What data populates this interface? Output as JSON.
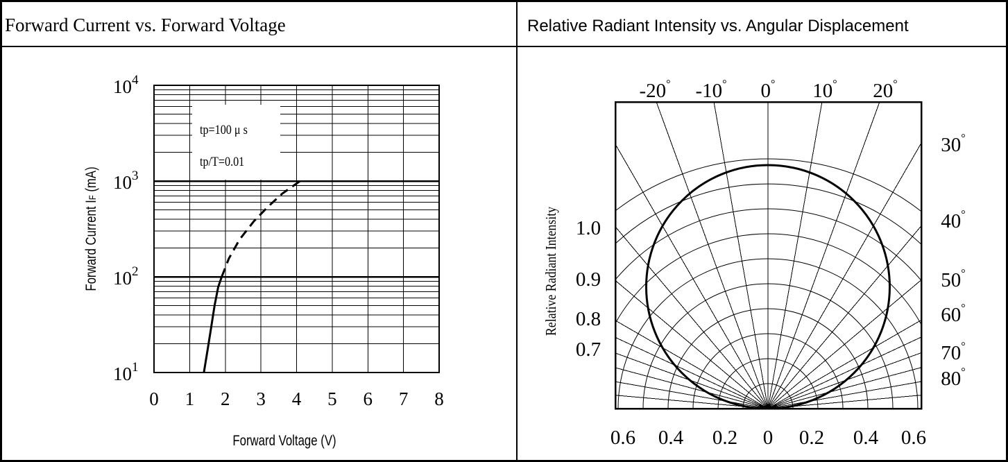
{
  "panels": {
    "left_title": "Forward Current vs. Forward Voltage",
    "right_title": "Relative Radiant Intensity vs. Angular Displacement"
  },
  "chart_data": [
    {
      "type": "line",
      "title": "Forward Current vs. Forward Voltage",
      "xlabel": "Forward Voltage (V)",
      "ylabel_main": "Forward Current I",
      "ylabel_sub": "F",
      "ylabel_unit": " (mA)",
      "xlim": [
        0,
        8
      ],
      "ylim": [
        10,
        10000
      ],
      "yscale": "log",
      "grid": true,
      "x_ticks": [
        "0",
        "1",
        "2",
        "3",
        "4",
        "5",
        "6",
        "7",
        "8"
      ],
      "y_ticks": [
        {
          "base": "10",
          "exp": "1"
        },
        {
          "base": "10",
          "exp": "2"
        },
        {
          "base": "10",
          "exp": "3"
        },
        {
          "base": "10",
          "exp": "4"
        }
      ],
      "annotations": [
        "tp=100 μ s",
        "tp/T=0.01"
      ],
      "series": [
        {
          "style": "solid",
          "x": [
            1.4,
            1.5,
            1.6,
            1.7,
            1.8,
            1.9
          ],
          "y": [
            10,
            17,
            29,
            50,
            78,
            100
          ]
        },
        {
          "style": "dashed",
          "x": [
            1.9,
            2.1,
            2.4,
            2.8,
            3.2,
            3.6,
            4.1
          ],
          "y": [
            100,
            155,
            245,
            380,
            540,
            740,
            1000
          ]
        }
      ]
    },
    {
      "type": "polar",
      "title": "Relative Radiant Intensity vs. Angular Displacement",
      "ylabel": "Relative Radiant Intensity",
      "top_angle_labels": [
        "-20",
        "-10",
        "0",
        "10",
        "20"
      ],
      "right_angle_labels": [
        "30",
        "40",
        "50",
        "60",
        "70",
        "80"
      ],
      "degree_symbol": "°",
      "left_scale_labels": [
        "1.0",
        "0.9",
        "0.8",
        "0.7"
      ],
      "bottom_scale_labels": [
        "0.6",
        "0.4",
        "0.2",
        "0",
        "0.2",
        "0.4",
        "0.6"
      ],
      "ring_radii": [
        0.1,
        0.2,
        0.3,
        0.4,
        0.5,
        0.6,
        0.7,
        0.8,
        0.9,
        1.0
      ],
      "radial_angles_deg": [
        -85,
        -80,
        -75,
        -70,
        -65,
        -60,
        -50,
        -40,
        -30,
        -20,
        -10,
        0,
        10,
        20,
        30,
        40,
        50,
        60,
        65,
        70,
        75,
        80,
        85
      ],
      "series": [
        {
          "shape": "circle",
          "center_x": 0,
          "center_y": 0.4875,
          "radius": 0.4875
        }
      ]
    }
  ]
}
